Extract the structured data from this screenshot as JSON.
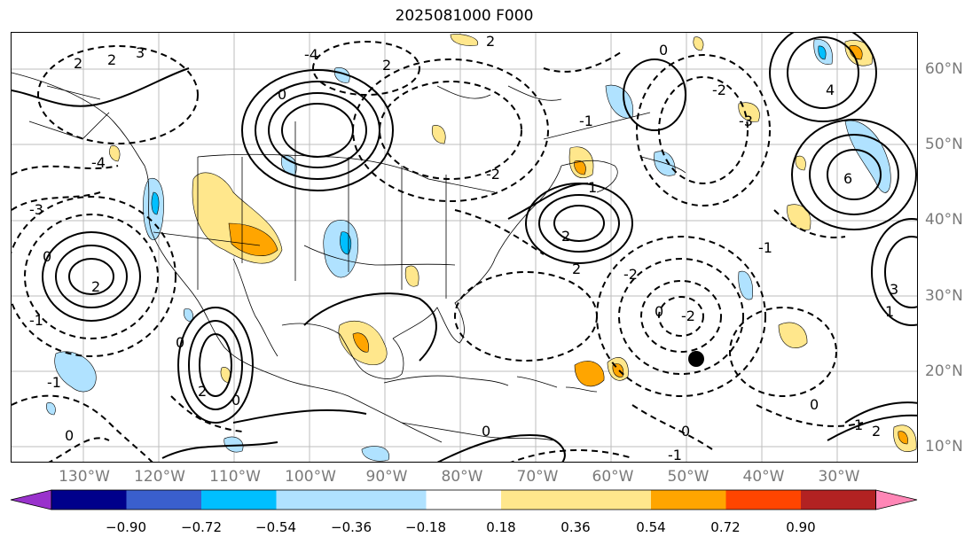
{
  "title": "2025081000 F000",
  "lon_labels": [
    "130°W",
    "120°W",
    "110°W",
    "100°W",
    "90°W",
    "80°W",
    "70°W",
    "60°W",
    "50°W",
    "40°W",
    "30°W"
  ],
  "lat_labels": [
    "60°N",
    "50°N",
    "40°N",
    "30°N",
    "20°N",
    "10°N"
  ],
  "colorbar": {
    "ticks": [
      "−0.90",
      "−0.72",
      "−0.54",
      "−0.36",
      "−0.18",
      "0.18",
      "0.36",
      "0.54",
      "0.72",
      "0.90"
    ],
    "colors": [
      "#9932cc",
      "#00008b",
      "#3a5fcd",
      "#00bfff",
      "#b0e2ff",
      "#ffffff",
      "#ffe78c",
      "#ffa500",
      "#ff4500",
      "#b22222",
      "#ff86b6"
    ]
  },
  "contour_labels": {
    "a": "0",
    "b": "-2",
    "c": "2",
    "d": "-1",
    "e": "1",
    "f": "-3",
    "g": "3",
    "h": "-4",
    "i": "4",
    "j": "6"
  },
  "shade_colors": {
    "pos_light": "#ffe78c",
    "pos": "#ffa500",
    "neg_light": "#b0e2ff",
    "neg": "#00bfff"
  },
  "marker_color": "#000000"
}
